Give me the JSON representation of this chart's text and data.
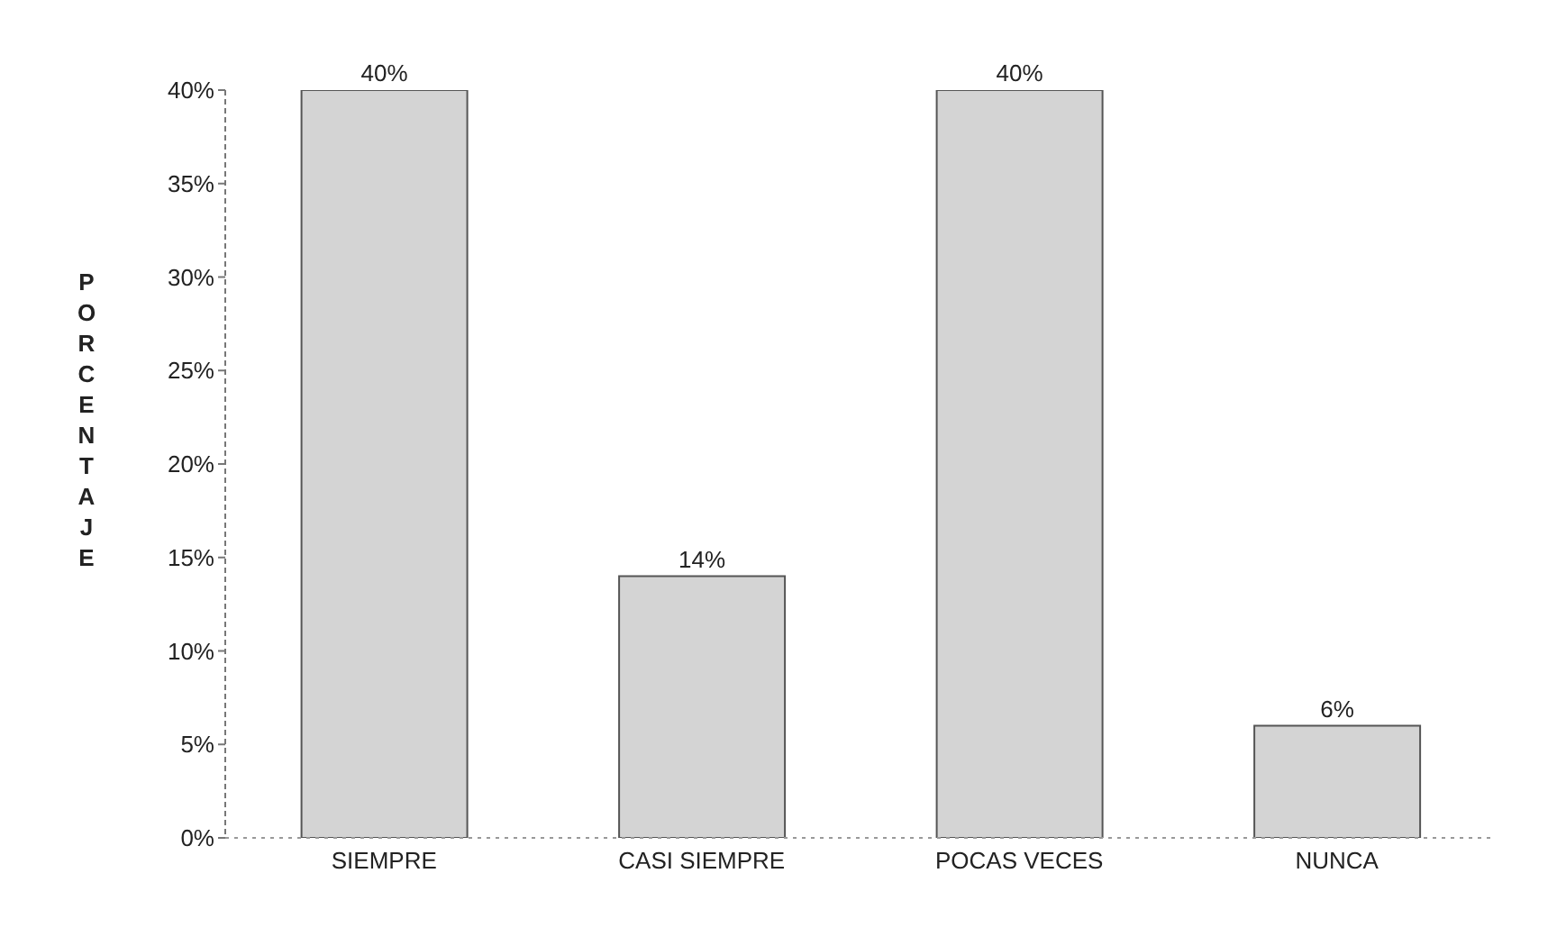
{
  "chart_data": {
    "type": "bar",
    "ylabel": "PORCENTAJE",
    "categories": [
      "SIEMPRE",
      "CASI SIEMPRE",
      "POCAS VECES",
      "NUNCA"
    ],
    "values": [
      40,
      14,
      40,
      6
    ],
    "value_labels": [
      "40%",
      "14%",
      "40%",
      "6%"
    ],
    "color": "#d4d4d4",
    "ylim": [
      0,
      40
    ],
    "yticks": [
      {
        "value": 0,
        "label": "0%"
      },
      {
        "value": 5,
        "label": "5%"
      },
      {
        "value": 10,
        "label": "10%"
      },
      {
        "value": 15,
        "label": "15%"
      },
      {
        "value": 20,
        "label": "20%"
      },
      {
        "value": 25,
        "label": "25%"
      },
      {
        "value": 30,
        "label": "30%"
      },
      {
        "value": 35,
        "label": "35%"
      },
      {
        "value": 40,
        "label": "40%"
      }
    ],
    "grid": false,
    "legend": false
  }
}
